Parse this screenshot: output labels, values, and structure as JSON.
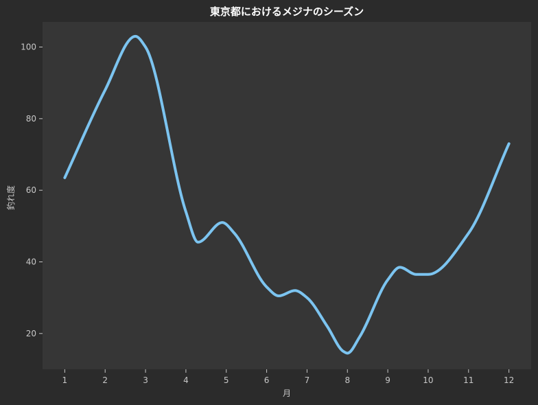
{
  "chart_data": {
    "type": "line",
    "title": "東京都におけるメジナのシーズン",
    "xlabel": "月",
    "ylabel": "釣れ度",
    "x": [
      1,
      2,
      3,
      4,
      5,
      6,
      7,
      8,
      9,
      10,
      11,
      12
    ],
    "x_ticks": [
      "1",
      "2",
      "3",
      "4",
      "5",
      "6",
      "7",
      "8",
      "9",
      "10",
      "11",
      "12"
    ],
    "y_ticks": [
      "20",
      "40",
      "60",
      "80",
      "100"
    ],
    "series": [
      {
        "x": [
          1,
          2,
          2.75,
          3,
          4,
          4.3,
          4.9,
          5.2,
          6,
          6.3,
          6.7,
          7,
          7.5,
          7.9,
          8,
          8.3,
          9,
          9.3,
          9.7,
          10,
          11,
          12
        ],
        "values": [
          63.5,
          88,
          103,
          100,
          54,
          45.5,
          51,
          48,
          33,
          30.5,
          32,
          30,
          22,
          15,
          14.5,
          19,
          35,
          38.5,
          36.5,
          36.5,
          48,
          73
        ],
        "color": "#7cc4f0"
      }
    ],
    "xlim": [
      0.45,
      12.55
    ],
    "ylim": [
      10,
      107
    ],
    "grid": false,
    "legend": "none",
    "background": "#363636",
    "figure_background": "#2b2b2b"
  }
}
